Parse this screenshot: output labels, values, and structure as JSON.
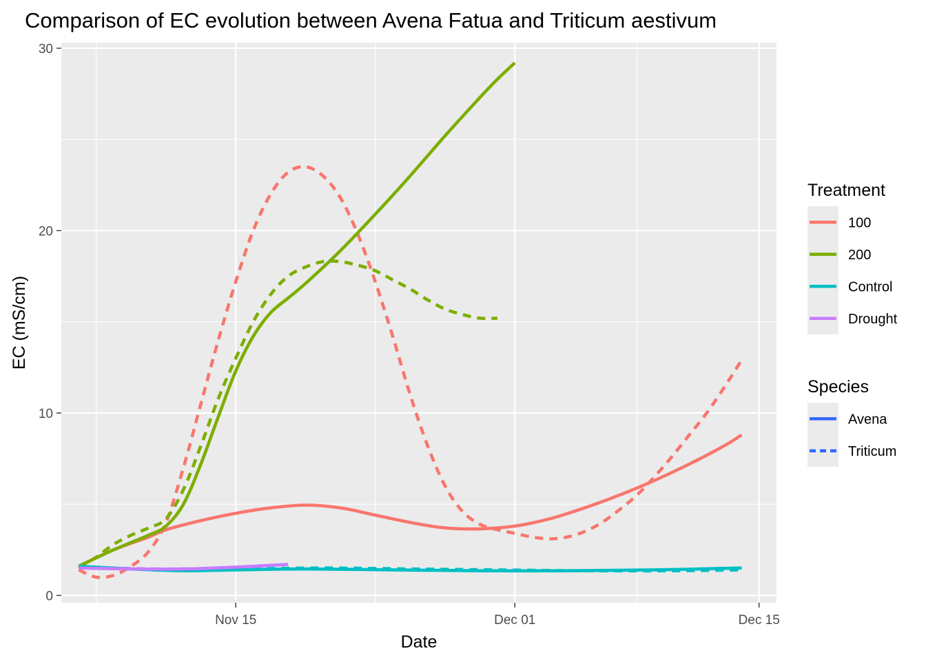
{
  "chart_data": {
    "type": "line",
    "title": "Comparison of EC evolution between Avena Fatua and Triticum aestivum",
    "xlabel": "Date",
    "ylabel": "EC (mS/cm)",
    "x_axis": {
      "type": "date",
      "range": [
        "2023-11-05",
        "2023-12-16"
      ],
      "ticks": [
        {
          "date": "2023-11-15",
          "label": "Nov 15"
        },
        {
          "date": "2023-12-01",
          "label": "Dec 01"
        },
        {
          "date": "2023-12-15",
          "label": "Dec 15"
        }
      ]
    },
    "y_axis": {
      "range": [
        -0.4,
        30.3
      ],
      "ticks": [
        0,
        10,
        20,
        30
      ]
    },
    "grid": true,
    "legend_position": "right",
    "legends": [
      {
        "title": "Treatment",
        "entries": [
          {
            "label": "100",
            "color": "#F8766D",
            "dash": "solid"
          },
          {
            "label": "200",
            "color": "#7CAE00",
            "dash": "solid"
          },
          {
            "label": "Control",
            "color": "#00BFC4",
            "dash": "solid"
          },
          {
            "label": "Drought",
            "color": "#C77CFF",
            "dash": "solid"
          }
        ]
      },
      {
        "title": "Species",
        "entries": [
          {
            "label": "Avena",
            "color": "#3366FF",
            "dash": "solid"
          },
          {
            "label": "Triticum",
            "color": "#3366FF",
            "dash": "dashed"
          }
        ]
      }
    ],
    "series": [
      {
        "treatment": "100",
        "species": "Avena",
        "color": "#F8766D",
        "dash": "solid",
        "points": [
          {
            "x": "2023-11-06",
            "y": 1.6
          },
          {
            "x": "2023-11-08",
            "y": 2.5
          },
          {
            "x": "2023-11-10",
            "y": 3.2
          },
          {
            "x": "2023-11-11",
            "y": 3.6
          },
          {
            "x": "2023-11-13",
            "y": 4.1
          },
          {
            "x": "2023-11-15",
            "y": 4.5
          },
          {
            "x": "2023-11-17",
            "y": 4.8
          },
          {
            "x": "2023-11-19",
            "y": 4.95
          },
          {
            "x": "2023-11-21",
            "y": 4.8
          },
          {
            "x": "2023-11-23",
            "y": 4.4
          },
          {
            "x": "2023-11-25",
            "y": 4.0
          },
          {
            "x": "2023-11-27",
            "y": 3.7
          },
          {
            "x": "2023-11-29",
            "y": 3.65
          },
          {
            "x": "2023-12-01",
            "y": 3.8
          },
          {
            "x": "2023-12-03",
            "y": 4.2
          },
          {
            "x": "2023-12-05",
            "y": 4.8
          },
          {
            "x": "2023-12-07",
            "y": 5.5
          },
          {
            "x": "2023-12-09",
            "y": 6.3
          },
          {
            "x": "2023-12-11",
            "y": 7.2
          },
          {
            "x": "2023-12-13",
            "y": 8.2
          },
          {
            "x": "2023-12-14",
            "y": 8.8
          }
        ]
      },
      {
        "treatment": "100",
        "species": "Triticum",
        "color": "#F8766D",
        "dash": "dashed",
        "points": [
          {
            "x": "2023-11-06",
            "y": 1.4
          },
          {
            "x": "2023-11-07",
            "y": 1.0
          },
          {
            "x": "2023-11-08",
            "y": 1.1
          },
          {
            "x": "2023-11-09",
            "y": 1.6
          },
          {
            "x": "2023-11-10",
            "y": 2.4
          },
          {
            "x": "2023-11-11",
            "y": 4.0
          },
          {
            "x": "2023-11-12",
            "y": 7.0
          },
          {
            "x": "2023-11-13",
            "y": 10.5
          },
          {
            "x": "2023-11-14",
            "y": 14.0
          },
          {
            "x": "2023-11-15",
            "y": 17.2
          },
          {
            "x": "2023-11-16",
            "y": 20.0
          },
          {
            "x": "2023-11-17",
            "y": 22.0
          },
          {
            "x": "2023-11-18",
            "y": 23.2
          },
          {
            "x": "2023-11-19",
            "y": 23.5
          },
          {
            "x": "2023-11-20",
            "y": 23.0
          },
          {
            "x": "2023-11-21",
            "y": 21.8
          },
          {
            "x": "2023-11-22",
            "y": 19.8
          },
          {
            "x": "2023-11-23",
            "y": 17.2
          },
          {
            "x": "2023-11-24",
            "y": 14.2
          },
          {
            "x": "2023-11-25",
            "y": 11.0
          },
          {
            "x": "2023-11-26",
            "y": 8.2
          },
          {
            "x": "2023-11-27",
            "y": 6.0
          },
          {
            "x": "2023-11-28",
            "y": 4.6
          },
          {
            "x": "2023-11-29",
            "y": 3.9
          },
          {
            "x": "2023-11-30",
            "y": 3.6
          },
          {
            "x": "2023-12-01",
            "y": 3.4
          },
          {
            "x": "2023-12-02",
            "y": 3.2
          },
          {
            "x": "2023-12-03",
            "y": 3.1
          },
          {
            "x": "2023-12-04",
            "y": 3.2
          },
          {
            "x": "2023-12-05",
            "y": 3.5
          },
          {
            "x": "2023-12-06",
            "y": 4.0
          },
          {
            "x": "2023-12-07",
            "y": 4.7
          },
          {
            "x": "2023-12-08",
            "y": 5.5
          },
          {
            "x": "2023-12-09",
            "y": 6.5
          },
          {
            "x": "2023-12-10",
            "y": 7.6
          },
          {
            "x": "2023-12-11",
            "y": 8.8
          },
          {
            "x": "2023-12-12",
            "y": 10.0
          },
          {
            "x": "2023-12-13",
            "y": 11.4
          },
          {
            "x": "2023-12-14",
            "y": 12.9
          }
        ]
      },
      {
        "treatment": "200",
        "species": "Avena",
        "color": "#7CAE00",
        "dash": "solid",
        "points": [
          {
            "x": "2023-11-06",
            "y": 1.6
          },
          {
            "x": "2023-11-08",
            "y": 2.5
          },
          {
            "x": "2023-11-10",
            "y": 3.3
          },
          {
            "x": "2023-11-11",
            "y": 3.8
          },
          {
            "x": "2023-11-12",
            "y": 5.0
          },
          {
            "x": "2023-11-13",
            "y": 7.2
          },
          {
            "x": "2023-11-14",
            "y": 9.8
          },
          {
            "x": "2023-11-15",
            "y": 12.3
          },
          {
            "x": "2023-11-16",
            "y": 14.2
          },
          {
            "x": "2023-11-17",
            "y": 15.5
          },
          {
            "x": "2023-11-18",
            "y": 16.3
          },
          {
            "x": "2023-11-19",
            "y": 17.1
          },
          {
            "x": "2023-11-21",
            "y": 18.9
          },
          {
            "x": "2023-11-23",
            "y": 20.9
          },
          {
            "x": "2023-11-25",
            "y": 23.0
          },
          {
            "x": "2023-11-27",
            "y": 25.2
          },
          {
            "x": "2023-11-29",
            "y": 27.3
          },
          {
            "x": "2023-11-30",
            "y": 28.3
          },
          {
            "x": "2023-12-01",
            "y": 29.2
          }
        ]
      },
      {
        "treatment": "200",
        "species": "Triticum",
        "color": "#7CAE00",
        "dash": "dashed",
        "points": [
          {
            "x": "2023-11-06",
            "y": 1.5
          },
          {
            "x": "2023-11-07",
            "y": 2.1
          },
          {
            "x": "2023-11-08",
            "y": 2.8
          },
          {
            "x": "2023-11-09",
            "y": 3.3
          },
          {
            "x": "2023-11-10",
            "y": 3.7
          },
          {
            "x": "2023-11-11",
            "y": 4.2
          },
          {
            "x": "2023-11-12",
            "y": 5.8
          },
          {
            "x": "2023-11-13",
            "y": 8.2
          },
          {
            "x": "2023-11-14",
            "y": 10.8
          },
          {
            "x": "2023-11-15",
            "y": 13.0
          },
          {
            "x": "2023-11-16",
            "y": 15.0
          },
          {
            "x": "2023-11-17",
            "y": 16.5
          },
          {
            "x": "2023-11-18",
            "y": 17.5
          },
          {
            "x": "2023-11-19",
            "y": 18.0
          },
          {
            "x": "2023-11-20",
            "y": 18.3
          },
          {
            "x": "2023-11-21",
            "y": 18.3
          },
          {
            "x": "2023-11-22",
            "y": 18.1
          },
          {
            "x": "2023-11-23",
            "y": 17.8
          },
          {
            "x": "2023-11-24",
            "y": 17.3
          },
          {
            "x": "2023-11-25",
            "y": 16.8
          },
          {
            "x": "2023-11-26",
            "y": 16.2
          },
          {
            "x": "2023-11-27",
            "y": 15.7
          },
          {
            "x": "2023-11-28",
            "y": 15.4
          },
          {
            "x": "2023-11-29",
            "y": 15.2
          },
          {
            "x": "2023-11-30",
            "y": 15.2
          }
        ]
      },
      {
        "treatment": "Control",
        "species": "Avena",
        "color": "#00BFC4",
        "dash": "solid",
        "points": [
          {
            "x": "2023-11-06",
            "y": 1.6
          },
          {
            "x": "2023-11-09",
            "y": 1.45
          },
          {
            "x": "2023-11-12",
            "y": 1.35
          },
          {
            "x": "2023-11-15",
            "y": 1.4
          },
          {
            "x": "2023-11-19",
            "y": 1.45
          },
          {
            "x": "2023-11-24",
            "y": 1.4
          },
          {
            "x": "2023-11-29",
            "y": 1.35
          },
          {
            "x": "2023-12-04",
            "y": 1.35
          },
          {
            "x": "2023-12-09",
            "y": 1.4
          },
          {
            "x": "2023-12-14",
            "y": 1.5
          }
        ]
      },
      {
        "treatment": "Control",
        "species": "Triticum",
        "color": "#00BFC4",
        "dash": "dashed",
        "points": [
          {
            "x": "2023-11-06",
            "y": 1.55
          },
          {
            "x": "2023-11-10",
            "y": 1.45
          },
          {
            "x": "2023-11-15",
            "y": 1.45
          },
          {
            "x": "2023-11-20",
            "y": 1.5
          },
          {
            "x": "2023-11-25",
            "y": 1.45
          },
          {
            "x": "2023-11-30",
            "y": 1.4
          },
          {
            "x": "2023-12-05",
            "y": 1.35
          },
          {
            "x": "2023-12-10",
            "y": 1.35
          },
          {
            "x": "2023-12-14",
            "y": 1.4
          }
        ]
      },
      {
        "treatment": "Drought",
        "species": "Avena",
        "color": "#C77CFF",
        "dash": "solid",
        "points": [
          {
            "x": "2023-11-06",
            "y": 1.5
          },
          {
            "x": "2023-11-09",
            "y": 1.45
          },
          {
            "x": "2023-11-12",
            "y": 1.45
          },
          {
            "x": "2023-11-15",
            "y": 1.55
          },
          {
            "x": "2023-11-18",
            "y": 1.7
          }
        ]
      },
      {
        "treatment": "Drought",
        "species": "Triticum",
        "color": "#C77CFF",
        "dash": "dashed",
        "points": [
          {
            "x": "2023-11-06",
            "y": 1.55
          },
          {
            "x": "2023-11-08",
            "y": 1.5
          },
          {
            "x": "2023-11-10",
            "y": 1.45
          },
          {
            "x": "2023-11-12",
            "y": 1.45
          }
        ]
      }
    ]
  }
}
